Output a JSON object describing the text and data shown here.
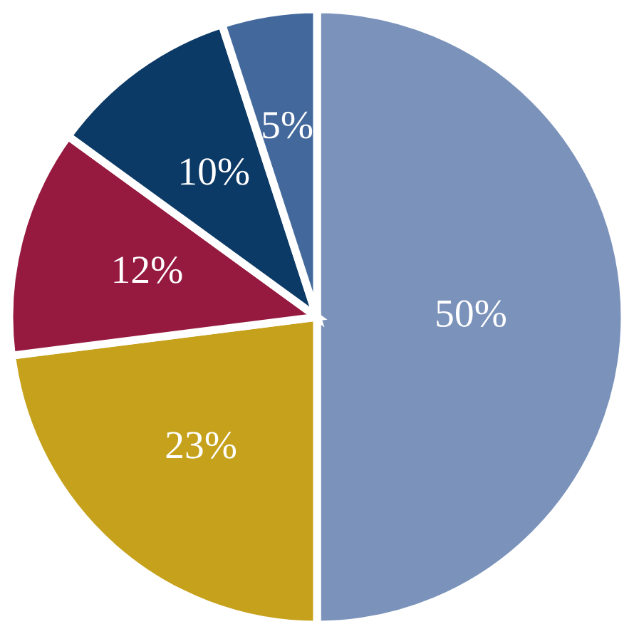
{
  "chart_data": {
    "type": "pie",
    "categories": [
      null,
      null,
      null,
      null,
      null
    ],
    "values": [
      50,
      23,
      12,
      10,
      5
    ],
    "value_labels": [
      "50%",
      "23%",
      "12%",
      "10%",
      "5%"
    ],
    "colors": [
      "#7b92ba",
      "#c6a11b",
      "#961a3f",
      "#0c3a66",
      "#43699c"
    ],
    "legend": false
  }
}
